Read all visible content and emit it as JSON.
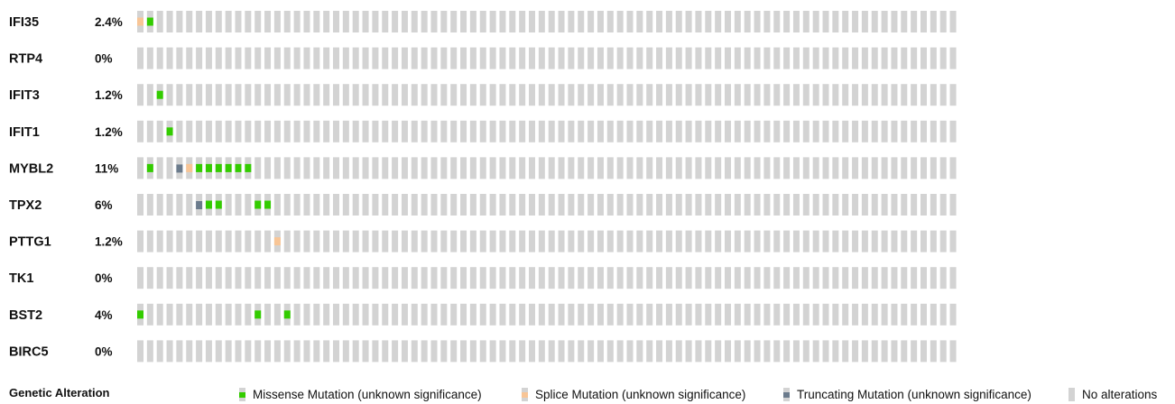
{
  "chart_data": {
    "type": "oncoprint",
    "n_samples": 84,
    "genes": [
      {
        "name": "IFI35",
        "pct": "2.4%",
        "alterations": [
          {
            "sample": 0,
            "type": "splice"
          },
          {
            "sample": 1,
            "type": "missense"
          }
        ]
      },
      {
        "name": "RTP4",
        "pct": "0%",
        "alterations": []
      },
      {
        "name": "IFIT3",
        "pct": "1.2%",
        "alterations": [
          {
            "sample": 2,
            "type": "missense"
          }
        ]
      },
      {
        "name": "IFIT1",
        "pct": "1.2%",
        "alterations": [
          {
            "sample": 3,
            "type": "missense"
          }
        ]
      },
      {
        "name": "MYBL2",
        "pct": "11%",
        "alterations": [
          {
            "sample": 1,
            "type": "missense"
          },
          {
            "sample": 4,
            "type": "truncating"
          },
          {
            "sample": 5,
            "type": "splice"
          },
          {
            "sample": 6,
            "type": "missense"
          },
          {
            "sample": 7,
            "type": "missense"
          },
          {
            "sample": 8,
            "type": "missense"
          },
          {
            "sample": 9,
            "type": "missense"
          },
          {
            "sample": 10,
            "type": "missense"
          },
          {
            "sample": 11,
            "type": "missense"
          }
        ]
      },
      {
        "name": "TPX2",
        "pct": "6%",
        "alterations": [
          {
            "sample": 6,
            "type": "truncating"
          },
          {
            "sample": 7,
            "type": "missense"
          },
          {
            "sample": 8,
            "type": "missense"
          },
          {
            "sample": 12,
            "type": "missense"
          },
          {
            "sample": 13,
            "type": "missense"
          }
        ]
      },
      {
        "name": "PTTG1",
        "pct": "1.2%",
        "alterations": [
          {
            "sample": 14,
            "type": "splice"
          }
        ]
      },
      {
        "name": "TK1",
        "pct": "0%",
        "alterations": []
      },
      {
        "name": "BST2",
        "pct": "4%",
        "alterations": [
          {
            "sample": 0,
            "type": "missense"
          },
          {
            "sample": 12,
            "type": "missense"
          },
          {
            "sample": 15,
            "type": "missense"
          }
        ]
      },
      {
        "name": "BIRC5",
        "pct": "0%",
        "alterations": []
      }
    ],
    "colors": {
      "none": "#d3d3d3",
      "missense": "#33cc00",
      "splice": "#f8c596",
      "truncating": "#6b7b8c"
    }
  },
  "legend": {
    "title": "Genetic Alteration",
    "items": [
      {
        "key": "missense",
        "label": "Missense Mutation (unknown significance)"
      },
      {
        "key": "splice",
        "label": "Splice Mutation (unknown significance)"
      },
      {
        "key": "truncating",
        "label": "Truncating Mutation (unknown significance)"
      },
      {
        "key": "none",
        "label": "No alterations"
      }
    ]
  }
}
